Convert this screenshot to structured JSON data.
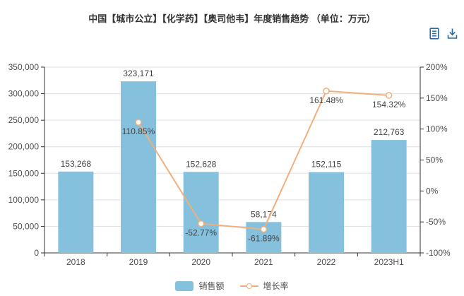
{
  "title": "中国【城市公立】【化学药】【奥司他韦】年度销售趋势 （单位：万元）",
  "toolbox": {
    "icons": [
      {
        "name": "data-view-icon",
        "glyph": "document-lines"
      },
      {
        "name": "download-icon",
        "glyph": "download-arrow-tray"
      }
    ]
  },
  "colors": {
    "bar": "#85c1dd",
    "line": "#f2ae7c",
    "marker_fill": "#ffffff",
    "axis": "#333333",
    "grid": "#e0e0e0",
    "label": "#4d4d4d",
    "title": "#333333",
    "toolbox": "#2b6a9e"
  },
  "chart_data": {
    "type": "bar",
    "combo_with": "line",
    "categories": [
      "2018",
      "2019",
      "2020",
      "2021",
      "2022",
      "2023H1"
    ],
    "series": [
      {
        "name": "销售额",
        "type": "bar",
        "axis": "left",
        "values": [
          153268,
          323171,
          152628,
          58174,
          152115,
          212763
        ],
        "labels": [
          "153,268",
          "323,171",
          "152,628",
          "58,174",
          "152,115",
          "212,763"
        ]
      },
      {
        "name": "增长率",
        "type": "line",
        "axis": "right",
        "values": [
          null,
          110.85,
          -52.77,
          -61.89,
          161.48,
          154.32
        ],
        "labels": [
          null,
          "110.85%",
          "-52.77%",
          "-61.89%",
          "161.48%",
          "154.32%"
        ]
      }
    ],
    "left_axis": {
      "min": 0,
      "max": 350000,
      "step": 50000,
      "tick_labels": [
        "0",
        "50,000",
        "100,000",
        "150,000",
        "200,000",
        "250,000",
        "300,000",
        "350,000"
      ]
    },
    "right_axis": {
      "min": -100,
      "max": 200,
      "step": 50,
      "tick_labels": [
        "-100%",
        "-50%",
        "0%",
        "50%",
        "100%",
        "150%",
        "200%"
      ]
    },
    "grid": true,
    "legend_position": "bottom"
  }
}
